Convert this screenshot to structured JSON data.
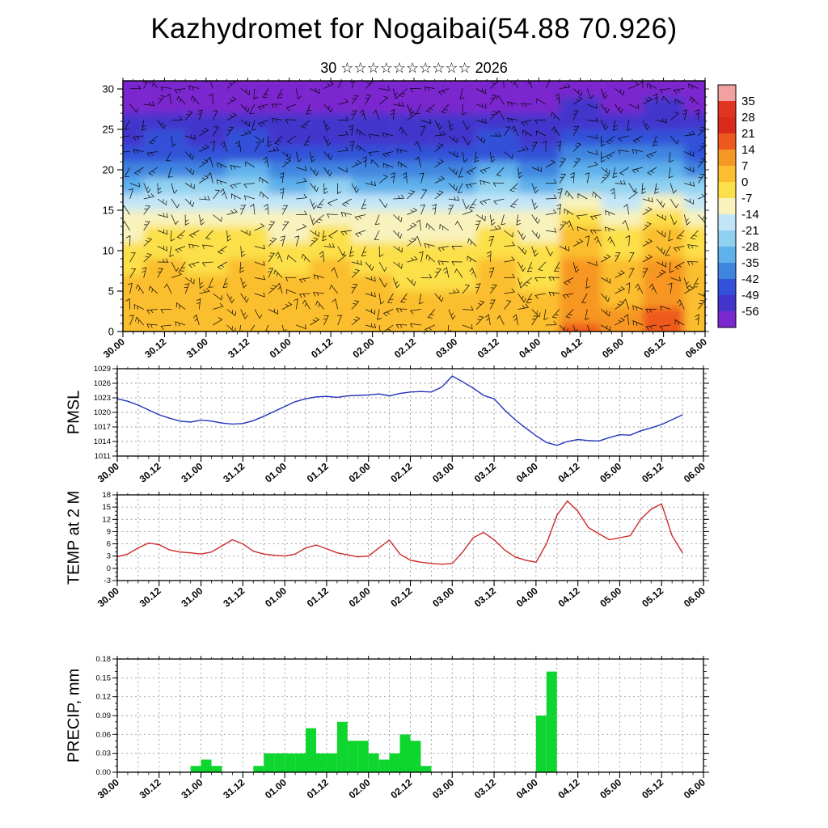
{
  "title": "Kazhydromet for Nogaibai(54.88 70.926)",
  "subtitle": "30 ☆☆☆☆☆☆☆☆☆☆ 2026",
  "x_axis": {
    "labels": [
      "30.00",
      "30.12",
      "31.00",
      "31.12",
      "01.00",
      "01.12",
      "02.00",
      "02.12",
      "03.00",
      "03.12",
      "04.00",
      "04.12",
      "05.00",
      "05.12",
      "06.00"
    ],
    "label_hours": [
      0,
      12,
      24,
      36,
      48,
      60,
      72,
      84,
      96,
      108,
      120,
      132,
      144,
      156,
      168
    ],
    "minor_tick_hours": 3,
    "grid_hours": 6,
    "range_hours": [
      0,
      168
    ]
  },
  "colorbar": {
    "boundary_labels": [
      "35",
      "28",
      "21",
      "14",
      "7",
      "0",
      "-7",
      "-14",
      "-21",
      "-28",
      "-35",
      "-42",
      "-49",
      "-56"
    ],
    "stops": [
      {
        "min": 35,
        "color": "#f2a1a1"
      },
      {
        "min": 28,
        "color": "#e13522"
      },
      {
        "min": 21,
        "color": "#d92a1c"
      },
      {
        "min": 14,
        "color": "#ee5a1e"
      },
      {
        "min": 7,
        "color": "#f79723"
      },
      {
        "min": 0,
        "color": "#fbbe2e"
      },
      {
        "min": -7,
        "color": "#fce04a"
      },
      {
        "min": -14,
        "color": "#f8f2bd"
      },
      {
        "min": -21,
        "color": "#c2e6f7"
      },
      {
        "min": -28,
        "color": "#90d1f1"
      },
      {
        "min": -35,
        "color": "#5fb1ec"
      },
      {
        "min": -42,
        "color": "#3f85e0"
      },
      {
        "min": -49,
        "color": "#3251d8"
      },
      {
        "min": -56,
        "color": "#4334cc"
      },
      {
        "min": -999,
        "color": "#7b28cf"
      }
    ]
  },
  "chart_data": [
    {
      "type": "heatmap",
      "name": "temperature-height-cross-section",
      "ylabel": "",
      "note": "time-height cross section of temperature (deg C) with wind-barb texture overlay",
      "x_hours": [
        0,
        12,
        24,
        36,
        48,
        60,
        72,
        84,
        96,
        108,
        120,
        132,
        144,
        156,
        168
      ],
      "levels": [
        0,
        2,
        4,
        6,
        8,
        10,
        12,
        14,
        16,
        18,
        20,
        22,
        24,
        26,
        28,
        30
      ],
      "ylim": [
        0,
        31
      ],
      "yticks": {
        "values": [
          0,
          5,
          10,
          15,
          20,
          25,
          30
        ],
        "labels": [
          "0",
          "5",
          "10",
          "15",
          "20",
          "25",
          "30"
        ]
      },
      "grid": [
        [
          3,
          6,
          4,
          6,
          3,
          5,
          3,
          2,
          1,
          6,
          2,
          14,
          8,
          16,
          5
        ],
        [
          2,
          5,
          3,
          5,
          2,
          4,
          2,
          1,
          1,
          5,
          1,
          13,
          7,
          14,
          4
        ],
        [
          1,
          4,
          2,
          4,
          1,
          3,
          1,
          0,
          0,
          4,
          0,
          11,
          5,
          12,
          3
        ],
        [
          0,
          2,
          0,
          3,
          0,
          2,
          0,
          -1,
          -2,
          3,
          -1,
          9,
          4,
          10,
          2
        ],
        [
          -2,
          0,
          -1,
          1,
          -2,
          0,
          -2,
          -3,
          -3,
          1,
          -3,
          7,
          2,
          8,
          0
        ],
        [
          -4,
          -2,
          -4,
          -2,
          -4,
          -3,
          -4,
          -5,
          -5,
          -2,
          -5,
          4,
          -1,
          5,
          -2
        ],
        [
          -8,
          -6,
          -7,
          -6,
          -8,
          -6,
          -8,
          -8,
          -9,
          -6,
          -9,
          0,
          -5,
          1,
          -6
        ],
        [
          -13,
          -12,
          -13,
          -11,
          -13,
          -12,
          -13,
          -14,
          -14,
          -11,
          -14,
          -7,
          -11,
          -6,
          -12
        ],
        [
          -21,
          -19,
          -20,
          -19,
          -20,
          -19,
          -20,
          -21,
          -21,
          -19,
          -21,
          -14,
          -18,
          -14,
          -19
        ],
        [
          -29,
          -27,
          -28,
          -27,
          -29,
          -28,
          -29,
          -29,
          -29,
          -27,
          -29,
          -23,
          -26,
          -22,
          -28
        ],
        [
          -37,
          -36,
          -36,
          -35,
          -37,
          -36,
          -37,
          -37,
          -38,
          -35,
          -37,
          -32,
          -35,
          -31,
          -36
        ],
        [
          -44,
          -43,
          -44,
          -43,
          -44,
          -43,
          -44,
          -44,
          -45,
          -43,
          -44,
          -40,
          -42,
          -39,
          -43
        ],
        [
          -50,
          -49,
          -50,
          -49,
          -50,
          -50,
          -50,
          -50,
          -51,
          -49,
          -51,
          -47,
          -49,
          -46,
          -49
        ],
        [
          -54,
          -54,
          -54,
          -53,
          -54,
          -54,
          -54,
          -55,
          -55,
          -53,
          -55,
          -51,
          -53,
          -51,
          -54
        ],
        [
          -57,
          -57,
          -57,
          -57,
          -57,
          -57,
          -57,
          -58,
          -58,
          -57,
          -58,
          -55,
          -57,
          -55,
          -57
        ],
        [
          -59,
          -59,
          -59,
          -59,
          -59,
          -59,
          -59,
          -60,
          -60,
          -59,
          -60,
          -57,
          -59,
          -57,
          -59
        ]
      ]
    },
    {
      "type": "line",
      "name": "pmsl",
      "ylabel": "PMSL",
      "color": "#2233bb",
      "ylim": [
        1011,
        1029
      ],
      "y_minor_step": 1,
      "yticks": {
        "values": [
          1011,
          1014,
          1017,
          1020,
          1023,
          1026,
          1029
        ],
        "labels": [
          "1011",
          "1014",
          "1017",
          "1020",
          "1023",
          "1026",
          "1029"
        ]
      },
      "x_hours": [
        0,
        3,
        6,
        9,
        12,
        15,
        18,
        21,
        24,
        27,
        30,
        33,
        36,
        39,
        42,
        45,
        48,
        51,
        54,
        57,
        60,
        63,
        66,
        69,
        72,
        75,
        78,
        81,
        84,
        87,
        90,
        93,
        96,
        99,
        102,
        105,
        108,
        111,
        114,
        117,
        120,
        123,
        126,
        129,
        132,
        135,
        138,
        141,
        144,
        147,
        150,
        153,
        156,
        159,
        162
      ],
      "values": [
        1022.8,
        1022.3,
        1021.5,
        1020.5,
        1019.5,
        1018.8,
        1018.2,
        1018.0,
        1018.4,
        1018.2,
        1017.8,
        1017.6,
        1017.7,
        1018.3,
        1019.2,
        1020.2,
        1021.2,
        1022.2,
        1022.8,
        1023.2,
        1023.3,
        1023.1,
        1023.4,
        1023.5,
        1023.6,
        1023.8,
        1023.4,
        1023.9,
        1024.2,
        1024.3,
        1024.2,
        1025.2,
        1027.5,
        1026.3,
        1025.0,
        1023.5,
        1022.8,
        1020.5,
        1018.5,
        1016.8,
        1015.2,
        1013.8,
        1013.2,
        1014.0,
        1014.4,
        1014.2,
        1014.1,
        1014.8,
        1015.4,
        1015.3,
        1016.2,
        1016.8,
        1017.5,
        1018.5,
        1019.5
      ]
    },
    {
      "type": "line",
      "name": "temp-2m",
      "ylabel": "TEMP at 2 M",
      "color": "#cc2a2a",
      "ylim": [
        -3,
        18
      ],
      "y_minor_step": 1,
      "yticks": {
        "values": [
          -3,
          0,
          3,
          6,
          9,
          12,
          15,
          18
        ],
        "labels": [
          "-3",
          "0",
          "3",
          "6",
          "9",
          "12",
          "15",
          "18"
        ]
      },
      "x_hours": [
        0,
        3,
        6,
        9,
        12,
        15,
        18,
        21,
        24,
        27,
        30,
        33,
        36,
        39,
        42,
        45,
        48,
        51,
        54,
        57,
        60,
        63,
        66,
        69,
        72,
        75,
        78,
        81,
        84,
        87,
        90,
        93,
        96,
        99,
        102,
        105,
        108,
        111,
        114,
        117,
        120,
        123,
        126,
        129,
        132,
        135,
        138,
        141,
        144,
        147,
        150,
        153,
        156,
        159,
        162
      ],
      "values": [
        2.8,
        3.5,
        5.0,
        6.2,
        5.8,
        4.5,
        4.0,
        3.8,
        3.5,
        4.0,
        5.5,
        7.0,
        6.0,
        4.2,
        3.5,
        3.2,
        3.0,
        3.5,
        5.0,
        5.7,
        4.8,
        3.8,
        3.3,
        2.8,
        3.0,
        5.0,
        6.9,
        3.5,
        2.0,
        1.5,
        1.2,
        1.0,
        1.2,
        4.0,
        7.5,
        8.8,
        7.0,
        4.5,
        2.8,
        2.0,
        1.5,
        6.0,
        13.0,
        16.5,
        14.0,
        10.0,
        8.5,
        7.0,
        7.5,
        8.0,
        12.0,
        14.5,
        15.8,
        8.0,
        3.8
      ]
    },
    {
      "type": "bar",
      "name": "precip",
      "ylabel": "PRECIP, mm",
      "color": "#0fd62e",
      "ylim": [
        0,
        0.18
      ],
      "y_minor_step": 0.01,
      "bin_hours": 3,
      "yticks": {
        "values": [
          0,
          0.03,
          0.06,
          0.09,
          0.12,
          0.15,
          0.18
        ],
        "labels": [
          "0.00",
          "0.03",
          "0.06",
          "0.09",
          "0.12",
          "0.15",
          "0.18"
        ]
      },
      "bar_hours": [
        21,
        24,
        27,
        39,
        42,
        45,
        48,
        51,
        54,
        57,
        60,
        63,
        66,
        69,
        72,
        75,
        78,
        81,
        84,
        87,
        120,
        123
      ],
      "values": [
        0.01,
        0.02,
        0.01,
        0.01,
        0.03,
        0.03,
        0.03,
        0.03,
        0.07,
        0.03,
        0.03,
        0.08,
        0.05,
        0.05,
        0.03,
        0.02,
        0.03,
        0.06,
        0.05,
        0.01,
        0.09,
        0.16
      ]
    }
  ]
}
